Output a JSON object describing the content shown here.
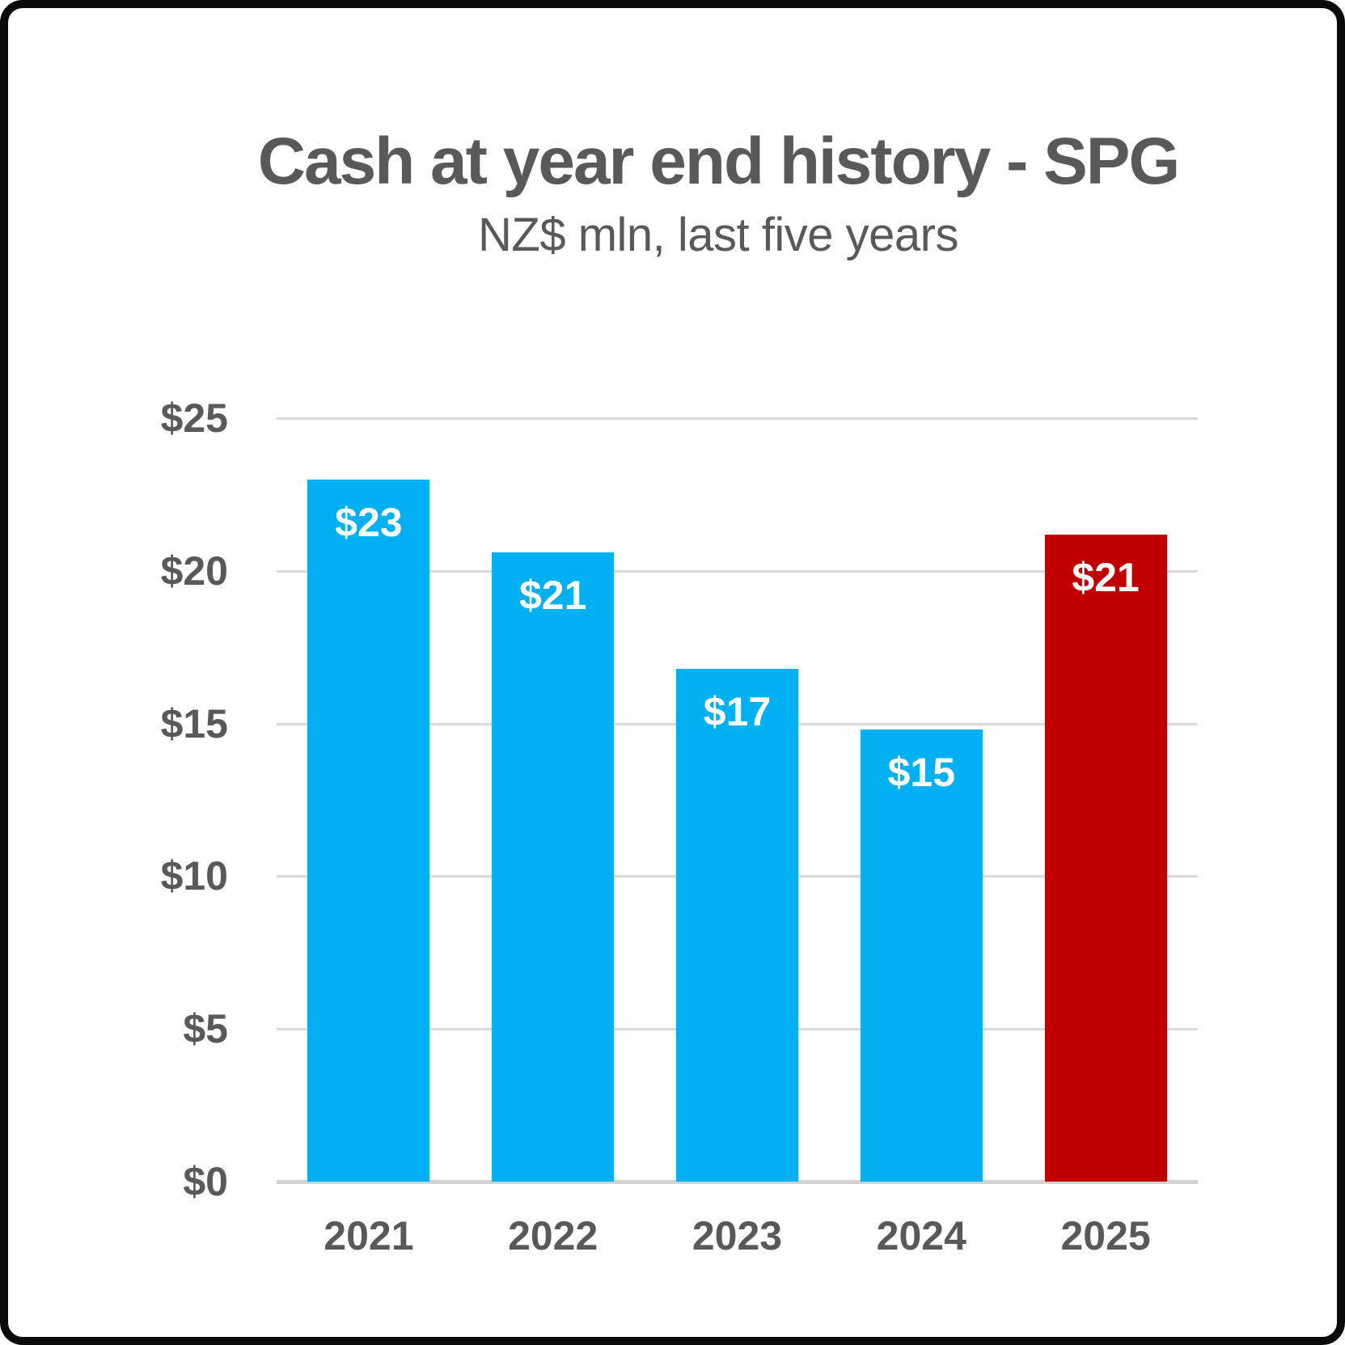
{
  "title": "Cash at year end history - SPG",
  "subtitle": "NZ$ mln, last five years",
  "chart_data": {
    "type": "bar",
    "title": "Cash at year end history - SPG",
    "subtitle": "NZ$ mln, last five years",
    "categories": [
      "2021",
      "2022",
      "2023",
      "2024",
      "2025"
    ],
    "values": [
      23.0,
      20.6,
      16.8,
      14.8,
      21.2
    ],
    "bar_labels": [
      "$23",
      "$21",
      "$17",
      "$15",
      "$21"
    ],
    "bar_colors": [
      "#00B0F0",
      "#00B0F0",
      "#00B0F0",
      "#00B0F0",
      "#C00000"
    ],
    "xlabel": "",
    "ylabel": "",
    "ylim": [
      0,
      25
    ],
    "ytick_interval": 5,
    "yticks": [
      0,
      5,
      10,
      15,
      20,
      25
    ],
    "ytick_labels": [
      "$0",
      "$5",
      "$10",
      "$15",
      "$20",
      "$25"
    ],
    "grid": "horizontal-gridlines-on",
    "legend": "none",
    "colors": {
      "series_blue": "#00B0F0",
      "highlight_red": "#C00000",
      "text_gray": "#595959",
      "gridline_gray": "#D9D9D9",
      "axis_line_gray": "#D2D2D2",
      "bar_label_white": "#FFFFFF",
      "frame_black": "#0A0A0A",
      "background_white": "#FFFFFF"
    }
  }
}
